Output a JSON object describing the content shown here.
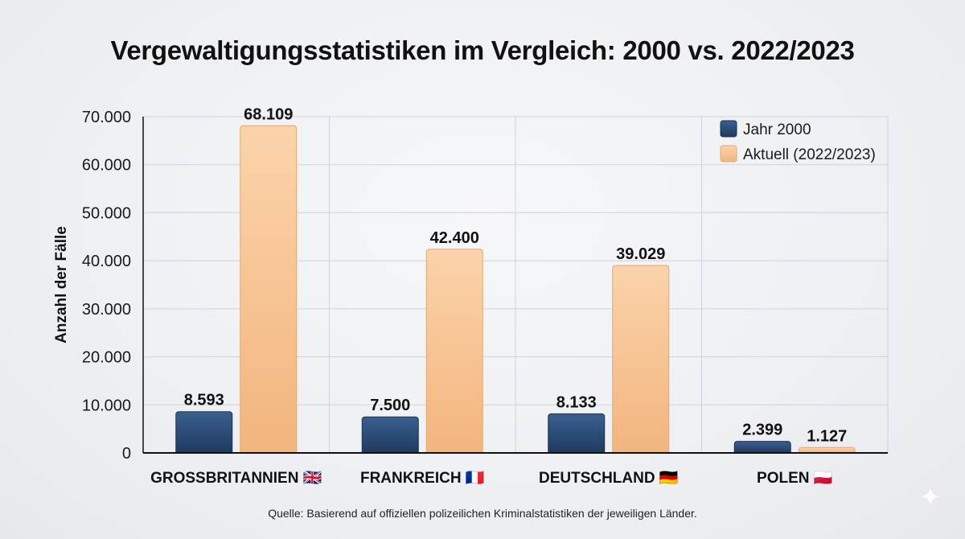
{
  "title": "Vergewaltigungsstatistiken im Vergleich: 2000 vs. 2022/2023",
  "source": "Quelle: Basierend auf offiziellen polizeilichen Kriminalstatistiken der jeweiligen Länder.",
  "colors": {
    "series_2000": "#2b4a75",
    "series_current": "#f6c08e",
    "grid": "#cfd3d9",
    "axis": "#111111"
  },
  "chart_data": {
    "type": "bar",
    "title": "Vergewaltigungsstatistiken im Vergleich: 2000 vs. 2022/2023",
    "xlabel": "",
    "ylabel": "Anzahl der Fälle",
    "ylim": [
      0,
      70000
    ],
    "yticks": [
      0,
      10000,
      20000,
      30000,
      40000,
      50000,
      60000,
      70000
    ],
    "ytick_labels": [
      "0",
      "10.000",
      "20.000",
      "30.000",
      "40.000",
      "50.000",
      "60.000",
      "70.000"
    ],
    "categories": [
      "GROSSBRITANNIEN 🇬🇧",
      "FRANKREICH 🇫🇷",
      "DEUTSCHLAND 🇩🇪",
      "POLEN 🇵🇱"
    ],
    "series": [
      {
        "name": "Jahr 2000",
        "values": [
          8593,
          7500,
          8133,
          2399
        ],
        "labels": [
          "8.593",
          "7.500",
          "8.133",
          "2.399"
        ]
      },
      {
        "name": "Aktuell (2022/2023)",
        "values": [
          68109,
          42400,
          39029,
          1127
        ],
        "labels": [
          "68.109",
          "42.400",
          "39.029",
          "1.127"
        ]
      }
    ],
    "legend_position": "top-right",
    "grid": true
  }
}
